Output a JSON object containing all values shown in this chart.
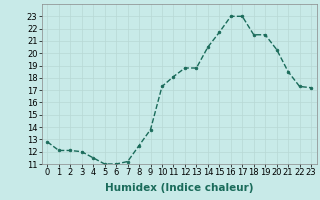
{
  "x": [
    0,
    1,
    2,
    3,
    4,
    5,
    6,
    7,
    8,
    9,
    10,
    11,
    12,
    13,
    14,
    15,
    16,
    17,
    18,
    19,
    20,
    21,
    22,
    23
  ],
  "y": [
    12.8,
    12.1,
    12.1,
    12.0,
    11.5,
    11.0,
    11.0,
    11.2,
    12.5,
    13.8,
    17.3,
    18.1,
    18.8,
    18.8,
    20.5,
    21.7,
    23.0,
    23.0,
    21.5,
    21.5,
    20.3,
    18.5,
    17.3,
    17.2
  ],
  "line_color": "#1a6b5a",
  "marker": "o",
  "marker_size": 2.0,
  "bg_color": "#c8eae8",
  "grid_color": "#b8d8d5",
  "xlabel": "Humidex (Indice chaleur)",
  "xlim": [
    -0.5,
    23.5
  ],
  "ylim": [
    11,
    24
  ],
  "yticks": [
    11,
    12,
    13,
    14,
    15,
    16,
    17,
    18,
    19,
    20,
    21,
    22,
    23
  ],
  "xticks": [
    0,
    1,
    2,
    3,
    4,
    5,
    6,
    7,
    8,
    9,
    10,
    11,
    12,
    13,
    14,
    15,
    16,
    17,
    18,
    19,
    20,
    21,
    22,
    23
  ],
  "xlabel_fontsize": 7.5,
  "tick_fontsize": 6.0,
  "linewidth": 1.0
}
